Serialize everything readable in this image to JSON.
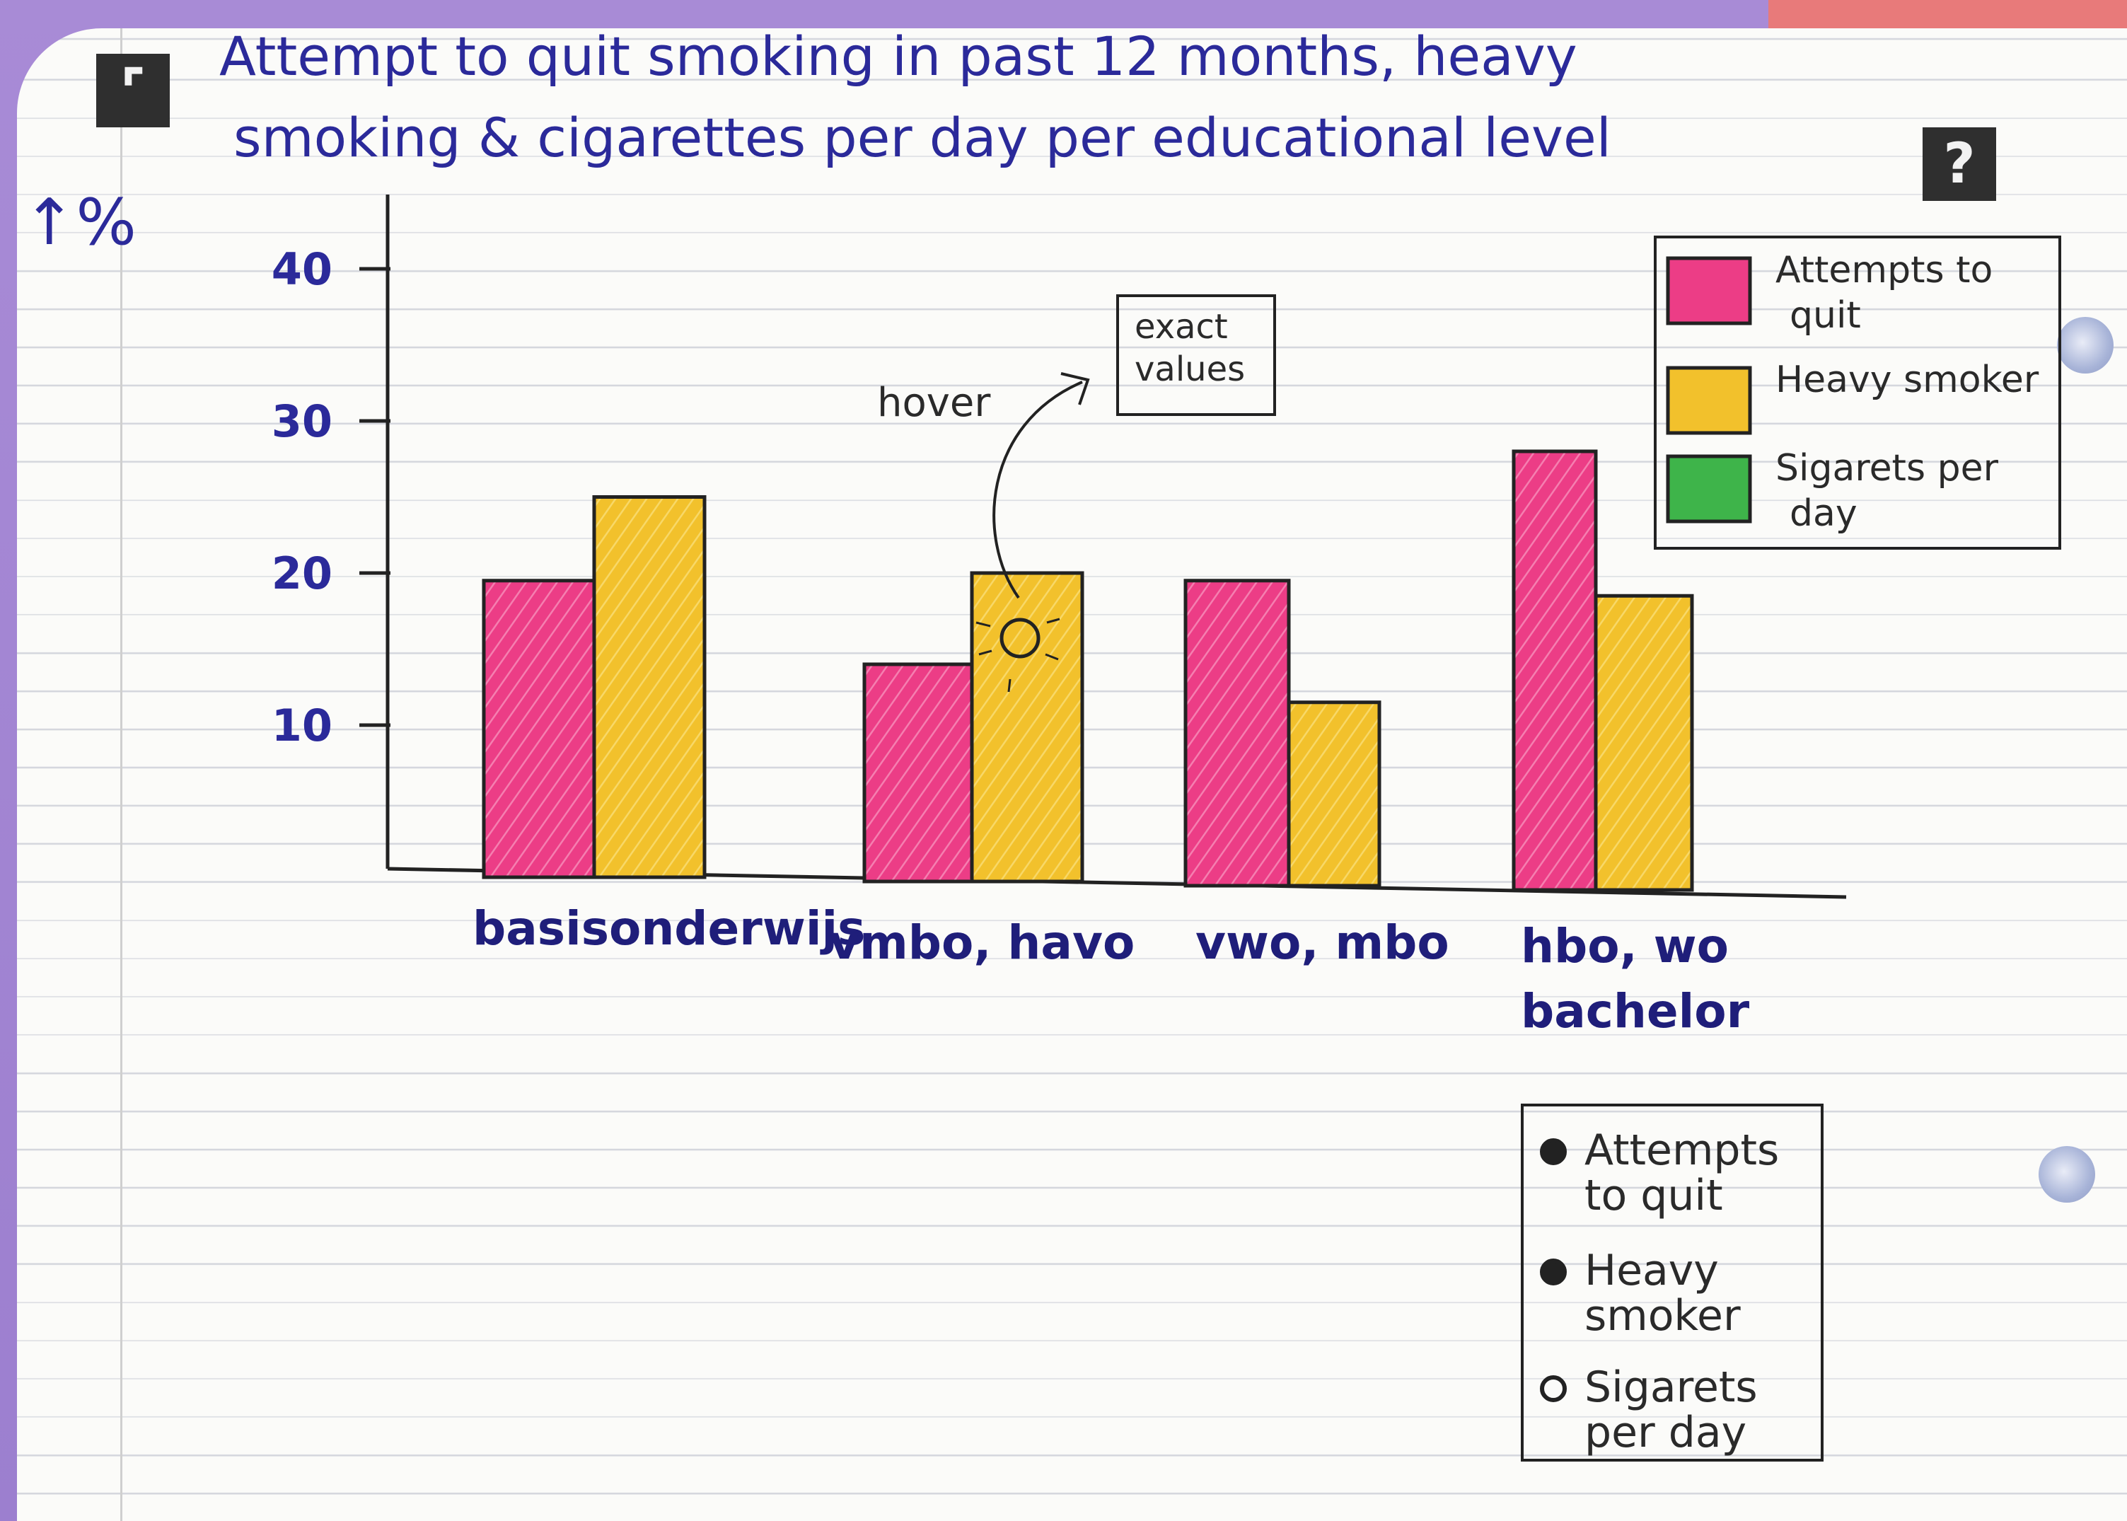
{
  "chart_data": {
    "type": "bar",
    "title": "Attempt to quit smoking in past 12 months, heavy smoking & cigarettes per day per educational level",
    "title_line1": "Attempt to quit smoking in past 12 months, heavy",
    "title_line2": "smoking & cigarettes per day per educational level",
    "ylabel": "↑%",
    "xlabel": "",
    "ylim": [
      0,
      45
    ],
    "yticks": [
      10,
      20,
      30,
      40
    ],
    "categories": [
      "basisonderwijs",
      "vmbo, havo",
      "vwo, mbo",
      "hbo, wo bachelor"
    ],
    "series": [
      {
        "name": "Attempts to quit",
        "values": [
          19.5,
          14,
          19.5,
          28
        ],
        "color": "#ec3d86"
      },
      {
        "name": "Heavy smoker",
        "values": [
          25,
          20,
          11.5,
          18.5
        ],
        "color": "#f2c12c"
      },
      {
        "name": "Sigarets per day",
        "values": [
          null,
          null,
          null,
          null
        ],
        "color": "#3eb44a"
      }
    ],
    "legend": "top-right",
    "grid": false
  },
  "annotation": {
    "hover_label": "hover",
    "box_label_line1": "exact",
    "box_label_line2": "values"
  },
  "legend_top": {
    "items": [
      {
        "line1": "Attempts to",
        "line2": "quit",
        "color": "#ec3d86"
      },
      {
        "line1": "Heavy smoker",
        "line2": "",
        "color": "#f2c12c"
      },
      {
        "line1": "Sigarets per",
        "line2": "day",
        "color": "#3eb44a"
      }
    ]
  },
  "legend_bottom": {
    "items": [
      {
        "line1": "Attempts",
        "line2": "to quit",
        "dot": "filled"
      },
      {
        "line1": "Heavy",
        "line2": "smoker",
        "dot": "filled"
      },
      {
        "line1": "Sigarets",
        "line2": "per day",
        "dot": "open"
      }
    ]
  },
  "icons": {
    "left": "fullscreen-icon",
    "right": "help-icon"
  }
}
